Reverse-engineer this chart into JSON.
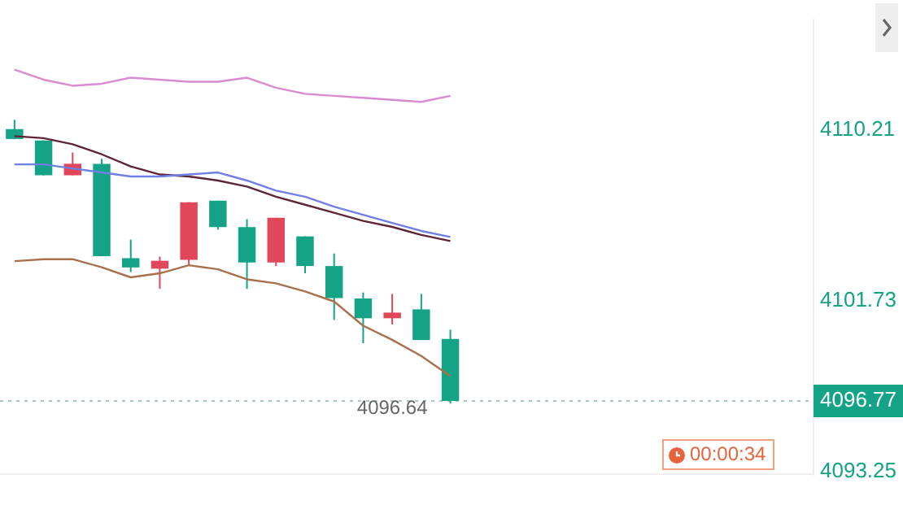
{
  "chart_data": {
    "type": "candlestick",
    "categories": [
      null,
      null,
      null,
      null,
      null,
      null,
      null,
      null,
      null,
      null,
      null,
      null,
      null,
      null,
      null,
      null,
      null,
      null,
      null,
      null,
      null,
      null,
      null,
      null,
      null,
      null,
      null,
      null
    ],
    "ohlc": [
      [
        4110.25,
        4110.71,
        4109.76,
        4109.76
      ],
      [
        4109.69,
        4109.69,
        4107.96,
        4107.96
      ],
      [
        4107.96,
        4109.09,
        4107.96,
        4108.53
      ],
      [
        4108.53,
        4108.78,
        4103.95,
        4103.95
      ],
      [
        4103.85,
        4104.77,
        4103.16,
        4103.39
      ],
      [
        4103.33,
        4103.93,
        4102.33,
        4103.72
      ],
      [
        4103.77,
        4106.62,
        4103.54,
        4106.62
      ],
      [
        4106.7,
        4106.7,
        4105.26,
        4105.39
      ],
      [
        4105.39,
        4105.78,
        4102.33,
        4103.64
      ],
      [
        4103.64,
        4105.85,
        4103.46,
        4105.85
      ],
      [
        4104.93,
        4104.93,
        4103.1,
        4103.46
      ],
      [
        4103.46,
        4104.08,
        4100.79,
        4101.87
      ],
      [
        4101.85,
        4102.15,
        4099.63,
        4100.87
      ],
      [
        4100.87,
        4102.08,
        4100.56,
        4101.15
      ],
      [
        4101.31,
        4102.08,
        4099.79,
        4099.79
      ],
      [
        4099.84,
        4100.3,
        4096.64,
        4096.77
      ],
      null,
      null,
      null,
      null,
      null,
      null,
      null,
      null,
      null,
      null,
      null,
      null
    ],
    "colors": [
      "#14a386",
      "#14a386",
      "#e0475a",
      "#14a386",
      "#14a386",
      "#e0475a",
      "#e0475a",
      "#14a386",
      "#14a386",
      "#e0475a",
      "#14a386",
      "#14a386",
      "#14a386",
      "#e0475a",
      "#14a386",
      "#14a386",
      null,
      null,
      null,
      null,
      null,
      null,
      null,
      null,
      null,
      null,
      null,
      null
    ],
    "series": [
      {
        "type": "line",
        "color": "#d98bd2",
        "values": [
          4113.2,
          4112.7,
          4112.4,
          4112.5,
          4112.8,
          4112.7,
          4112.6,
          4112.6,
          4112.8,
          4112.3,
          4112.0,
          4111.9,
          4111.8,
          4111.7,
          4111.6,
          4111.9,
          null,
          null,
          null,
          null,
          null,
          null,
          null,
          null,
          null,
          null,
          null,
          null
        ]
      },
      {
        "type": "line",
        "color": "#6f7fe6",
        "values": [
          4108.5,
          4108.5,
          4108.3,
          4108.1,
          4107.9,
          4107.9,
          4108.0,
          4108.1,
          4107.7,
          4107.2,
          4106.9,
          4106.4,
          4106.0,
          4105.6,
          4105.2,
          4104.9,
          null,
          null,
          null,
          null,
          null,
          null,
          null,
          null,
          null,
          null,
          null,
          null
        ]
      },
      {
        "type": "line",
        "color": "#5e2535",
        "values": [
          4109.9,
          4109.8,
          4109.5,
          4109.0,
          4108.4,
          4108.0,
          4107.9,
          4107.7,
          4107.4,
          4106.9,
          4106.5,
          4106.1,
          4105.7,
          4105.4,
          4105.0,
          4104.7,
          null,
          null,
          null,
          null,
          null,
          null,
          null,
          null,
          null,
          null,
          null,
          null
        ]
      },
      {
        "type": "line",
        "color": "#a8704c",
        "values": [
          4103.7,
          4103.8,
          4103.8,
          4103.4,
          4102.9,
          4103.1,
          4103.5,
          4103.3,
          4102.8,
          4102.6,
          4102.2,
          4101.7,
          4100.5,
          4099.8,
          4099.0,
          4098.0,
          null,
          null,
          null,
          null,
          null,
          null,
          null,
          null,
          null,
          null,
          null,
          null
        ]
      }
    ],
    "ylim": [
      4093.1,
      4115.7
    ],
    "yticks": [
      4110.21,
      4101.73,
      4093.25
    ],
    "ref_lines": [
      {
        "axis": "y",
        "value": 4096.77,
        "label": "4096.77",
        "color": "#a9c7c0",
        "line_style": "dotted"
      }
    ],
    "annotations": [
      "4096.64",
      "00:00:34"
    ],
    "grid": false,
    "legend": false
  }
}
